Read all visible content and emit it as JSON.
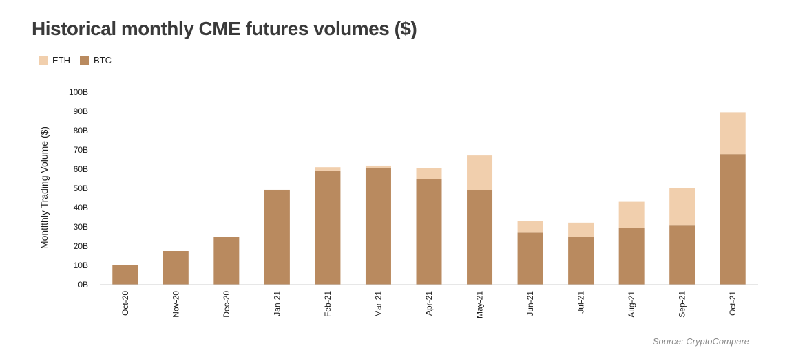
{
  "title": "Historical monthly CME futures volumes ($)",
  "source": "Source: CryptoCompare",
  "legend": [
    {
      "name": "ETH",
      "color": "#f1cfad"
    },
    {
      "name": "BTC",
      "color": "#b98a5f"
    }
  ],
  "chart_data": {
    "type": "bar",
    "stacked": true,
    "title": "Historical monthly CME futures volumes ($)",
    "xlabel": "",
    "ylabel": "Montlthly Trading Volume ($)",
    "ylim": [
      0,
      100
    ],
    "yticks": [
      "0B",
      "10B",
      "20B",
      "30B",
      "40B",
      "50B",
      "60B",
      "70B",
      "80B",
      "90B",
      "100B"
    ],
    "ytick_values": [
      0,
      10,
      20,
      30,
      40,
      50,
      60,
      70,
      80,
      90,
      100
    ],
    "categories": [
      "Oct-20",
      "Nov-20",
      "Dec-20",
      "Jan-21",
      "Feb-21",
      "Mar-21",
      "Apr-21",
      "May-21",
      "Jun-21",
      "Jul-21",
      "Aug-21",
      "Sep-21",
      "Oct-21"
    ],
    "series": [
      {
        "name": "BTC",
        "color": "#b98a5f",
        "values": [
          10,
          17.5,
          24.8,
          49.3,
          59.3,
          60.5,
          55,
          49,
          27,
          25,
          29.5,
          31,
          67.8
        ]
      },
      {
        "name": "ETH",
        "color": "#f1cfad",
        "values": [
          0,
          0,
          0,
          0,
          1.7,
          1.3,
          5.5,
          18.1,
          6,
          7.2,
          13.5,
          19,
          21.7
        ]
      }
    ],
    "grid": false,
    "legend_position": "top-left"
  }
}
